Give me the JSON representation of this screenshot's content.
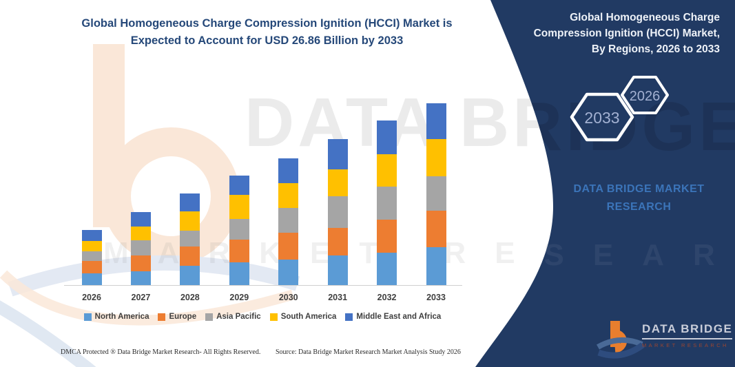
{
  "left_title": {
    "line1": "Global Homogeneous Charge Compression Ignition (HCCI) Market is",
    "line2": "Expected to Account for USD 26.86 Billion by 2033"
  },
  "right_panel": {
    "title_lines": [
      "Global Homogeneous Charge",
      "Compression Ignition (HCCI) Market,",
      "By Regions, 2026 to 2033"
    ],
    "hexagon_back_label": "2026",
    "hexagon_front_label": "2033",
    "brand_line1": "DATA BRIDGE MARKET",
    "brand_line2": "RESEARCH",
    "panel_color": "#213a63",
    "brand_text_color": "#3b74b9"
  },
  "watermark": {
    "line1": "DATA BRIDGE",
    "line2": "MARKET RESEARCH"
  },
  "chart_data": {
    "type": "bar",
    "stacked": true,
    "title": "Global Homogeneous Charge Compression Ignition (HCCI) Market is Expected to Account for USD 26.86 Billion by 2033",
    "unit": "USD Billion",
    "categories": [
      "2026",
      "2027",
      "2028",
      "2029",
      "2030",
      "2031",
      "2032",
      "2033"
    ],
    "series": [
      {
        "name": "North America",
        "color": "#5b9bd5",
        "values": [
          1.69,
          2.06,
          2.88,
          3.33,
          3.82,
          4.34,
          4.81,
          5.57
        ]
      },
      {
        "name": "Europe",
        "color": "#ed7d31",
        "values": [
          1.87,
          2.37,
          2.79,
          3.39,
          3.88,
          4.13,
          4.85,
          5.45
        ]
      },
      {
        "name": "Asia Pacific",
        "color": "#a5a5a5",
        "values": [
          1.38,
          2.18,
          2.4,
          3.05,
          3.72,
          4.62,
          4.91,
          5.09
        ]
      },
      {
        "name": "South America",
        "color": "#ffc000",
        "values": [
          1.6,
          2.03,
          2.79,
          3.56,
          3.62,
          4.0,
          4.72,
          5.49
        ]
      },
      {
        "name": "Middle East and Africa",
        "color": "#4472c4",
        "values": [
          1.56,
          2.2,
          2.7,
          2.88,
          3.71,
          4.47,
          4.98,
          5.26
        ]
      }
    ],
    "totals": [
      8.1,
      10.84,
      13.56,
      16.21,
      18.75,
      21.56,
      24.27,
      26.86
    ],
    "ylim": [
      0,
      27
    ],
    "grid": false,
    "legend_position": "bottom"
  },
  "logo": {
    "name": "DATA BRIDGE",
    "subtitle": "MARKET RESEARCH"
  },
  "footer": {
    "left": "DMCA Protected ® Data Bridge Market Research-  All Rights Reserved.",
    "right": "Source: Data Bridge Market Research  Market Analysis Study 2026"
  }
}
